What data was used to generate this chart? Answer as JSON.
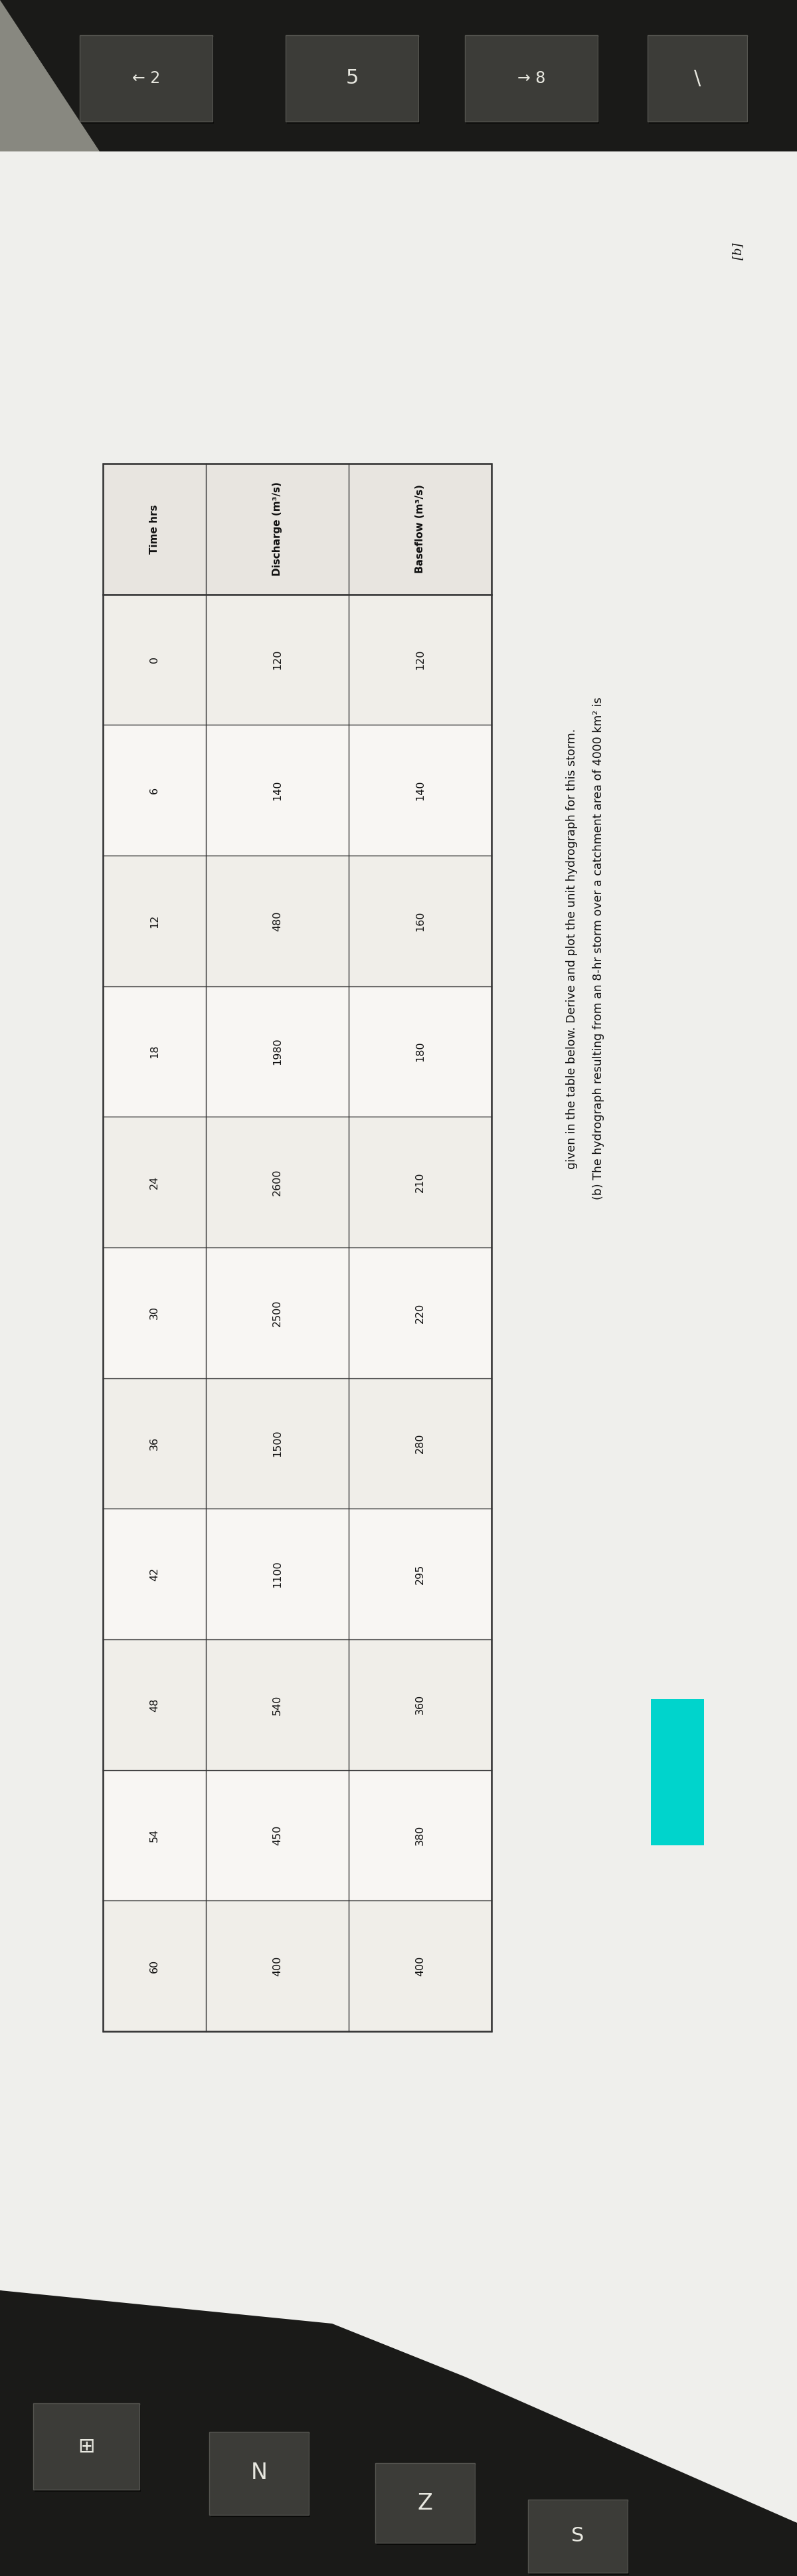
{
  "title_line1": "(b) The hydrograph resulting from an 8-hr storm over a catchment area of 4000 km² is",
  "title_line2": "given in the table below. Derive and plot the unit hydrograph for this storm.",
  "col_headers": [
    "Time hrs",
    "Discharge (m³/s)",
    "Baseflow (m³/s)"
  ],
  "rows": [
    [
      "0",
      "120",
      "120"
    ],
    [
      "6",
      "140",
      "140"
    ],
    [
      "12",
      "480",
      "160"
    ],
    [
      "18",
      "1980",
      "180"
    ],
    [
      "24",
      "2600",
      "210"
    ],
    [
      "30",
      "2500",
      "220"
    ],
    [
      "36",
      "1500",
      "280"
    ],
    [
      "42",
      "1100",
      "295"
    ],
    [
      "48",
      "540",
      "360"
    ],
    [
      "54",
      "450",
      "380"
    ],
    [
      "60",
      "400",
      "400"
    ]
  ],
  "corner_label": "[b]",
  "bg_color": "#c8c8c8",
  "paper_color": "#efefec",
  "keyboard_color": "#1c1c1c",
  "keyboard_surface": "#2e2e2a",
  "key_face": "#3c3c38",
  "key_edge": "#555550",
  "text_color": "#111111",
  "key_text_color": "#e8e8e0",
  "teal_color": "#00d4cc",
  "table_line_color": "#333333",
  "table_bg": "#f5f3f0",
  "header_bg": "#e8e5e0"
}
